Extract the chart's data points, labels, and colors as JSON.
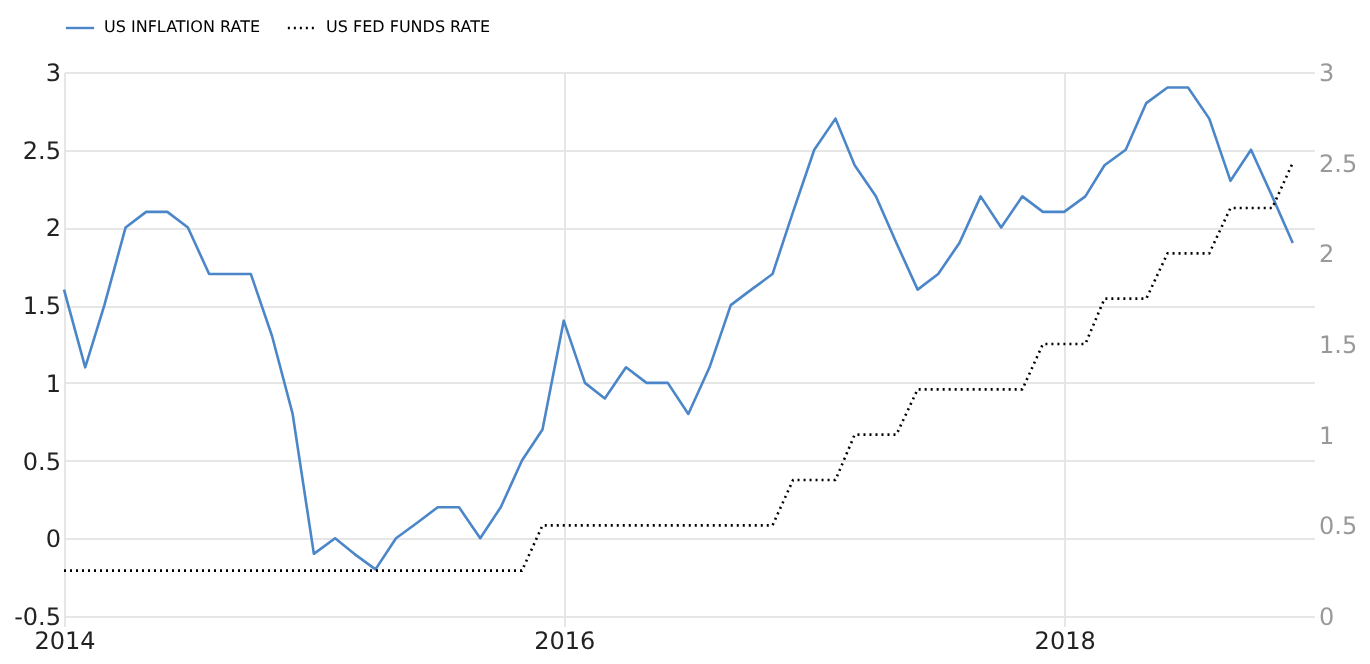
{
  "chart_data": {
    "type": "line",
    "x": [
      "2014-01",
      "2014-02",
      "2014-03",
      "2014-04",
      "2014-05",
      "2014-06",
      "2014-07",
      "2014-08",
      "2014-09",
      "2014-10",
      "2014-11",
      "2014-12",
      "2015-01",
      "2015-02",
      "2015-03",
      "2015-04",
      "2015-05",
      "2015-06",
      "2015-07",
      "2015-08",
      "2015-09",
      "2015-10",
      "2015-11",
      "2015-12",
      "2016-01",
      "2016-02",
      "2016-03",
      "2016-04",
      "2016-05",
      "2016-06",
      "2016-07",
      "2016-08",
      "2016-09",
      "2016-10",
      "2016-11",
      "2016-12",
      "2017-01",
      "2017-02",
      "2017-03",
      "2017-04",
      "2017-05",
      "2017-06",
      "2017-07",
      "2017-08",
      "2017-09",
      "2017-10",
      "2017-11",
      "2017-12",
      "2018-01",
      "2018-02",
      "2018-03",
      "2018-04",
      "2018-05",
      "2018-06",
      "2018-07",
      "2018-08",
      "2018-09",
      "2018-10",
      "2018-11",
      "2018-12"
    ],
    "series": [
      {
        "name": "US INFLATION RATE",
        "color": "#4a86c8",
        "line_style": "solid",
        "values": [
          1.6,
          1.1,
          1.5,
          2.0,
          2.1,
          2.1,
          2.0,
          1.7,
          1.7,
          1.7,
          1.3,
          0.8,
          -0.1,
          0.0,
          -0.1,
          -0.2,
          0.0,
          0.1,
          0.2,
          0.2,
          0.0,
          0.2,
          0.5,
          0.7,
          1.4,
          1.0,
          0.9,
          1.1,
          1.0,
          1.0,
          0.8,
          1.1,
          1.5,
          1.6,
          1.7,
          2.1,
          2.5,
          2.7,
          2.4,
          2.2,
          1.9,
          1.6,
          1.7,
          1.9,
          2.2,
          2.0,
          2.2,
          2.1,
          2.1,
          2.2,
          2.4,
          2.5,
          2.8,
          2.9,
          2.9,
          2.7,
          2.3,
          2.5,
          2.2,
          1.9
        ]
      },
      {
        "name": "US FED FUNDS RATE",
        "color": "#000000",
        "line_style": "dotted",
        "axis": "y2",
        "values": [
          0.25,
          0.25,
          0.25,
          0.25,
          0.25,
          0.25,
          0.25,
          0.25,
          0.25,
          0.25,
          0.25,
          0.25,
          0.25,
          0.25,
          0.25,
          0.25,
          0.25,
          0.25,
          0.25,
          0.25,
          0.25,
          0.25,
          0.25,
          0.5,
          0.5,
          0.5,
          0.5,
          0.5,
          0.5,
          0.5,
          0.5,
          0.5,
          0.5,
          0.5,
          0.5,
          0.75,
          0.75,
          0.75,
          1.0,
          1.0,
          1.0,
          1.25,
          1.25,
          1.25,
          1.25,
          1.25,
          1.25,
          1.5,
          1.5,
          1.5,
          1.75,
          1.75,
          1.75,
          2.0,
          2.0,
          2.0,
          2.25,
          2.25,
          2.25,
          2.5
        ]
      }
    ],
    "xlim": [
      "2014-01",
      "2019-01"
    ],
    "xticks": [
      "2014",
      "2016",
      "2018"
    ],
    "ylim": [
      -0.5,
      3
    ],
    "yticks": [
      -0.5,
      0,
      0.5,
      1,
      1.5,
      2,
      2.5,
      3
    ],
    "y2lim": [
      0,
      3
    ],
    "y2ticks": [
      0,
      0.5,
      1,
      1.5,
      2,
      2.5,
      3
    ],
    "grid": true,
    "legend": "top left"
  }
}
